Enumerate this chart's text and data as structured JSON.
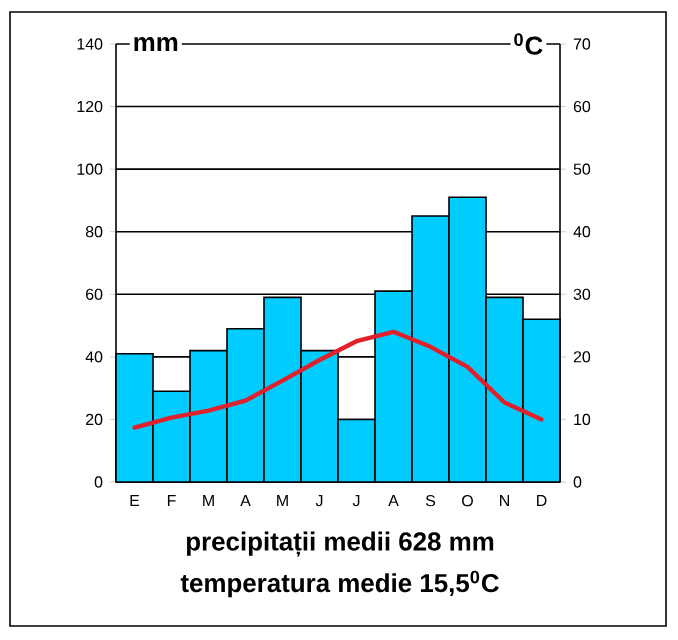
{
  "chart_data": {
    "type": "bar",
    "categories": [
      "E",
      "F",
      "M",
      "A",
      "M",
      "J",
      "J",
      "A",
      "S",
      "O",
      "N",
      "D"
    ],
    "series": [
      {
        "color": "#00ccff",
        "values": [
          41,
          29,
          42,
          49,
          59,
          42,
          20,
          61,
          85,
          91,
          59,
          52
        ]
      },
      {
        "type": "line",
        "axis": "y2",
        "color": "#e0202a",
        "values": [
          8.7,
          10.3,
          11.4,
          13,
          16.2,
          19.5,
          22.5,
          24,
          21.6,
          18.4,
          12.7,
          10
        ]
      }
    ],
    "ylabel": "mm",
    "y2label": "$^{0}$C",
    "ylim": [
      0,
      140
    ],
    "yticks": [
      0,
      20,
      40,
      60,
      80,
      100,
      120,
      140
    ],
    "y2lim": [
      0,
      70
    ],
    "y2ticks": [
      0,
      10,
      20,
      30,
      40,
      50,
      60,
      70
    ],
    "grid": "y",
    "annotations": [
      "precipitații medii 628 mm",
      "temperatura medie 15,5$^{0}$C"
    ]
  }
}
